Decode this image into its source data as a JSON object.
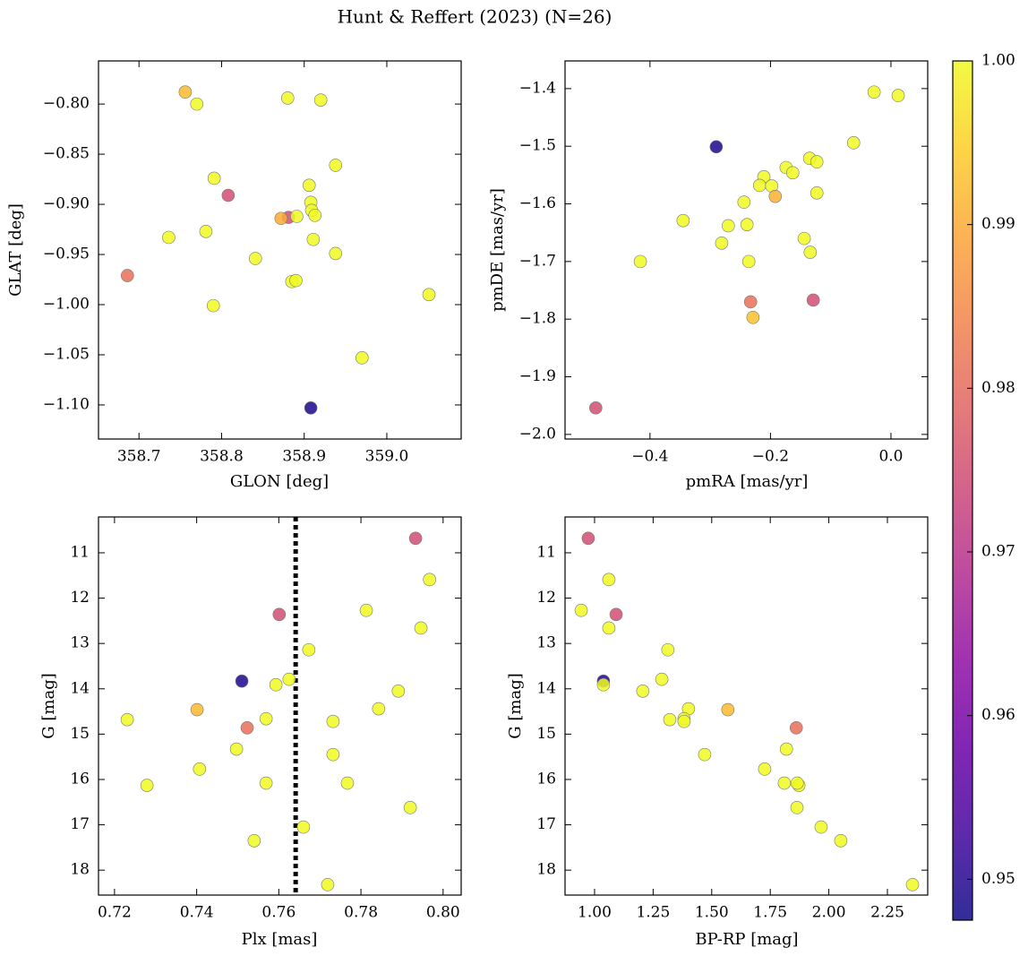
{
  "title": "Hunt & Reffert (2023) (N=26)",
  "colorbar": {
    "cmap": "plasma",
    "clim": [
      0.9475,
      1.0
    ],
    "ticks": [
      0.95,
      0.96,
      0.97,
      0.98,
      0.99,
      {
        "value": 1.0,
        "label": "1.00"
      }
    ]
  },
  "chart_data": [
    {
      "type": "scatter",
      "xlabel": "GLON [deg]",
      "ylabel": "GLAT [deg]",
      "xlim": [
        358.651,
        359.09
      ],
      "ylim": [
        -1.134,
        -0.757
      ],
      "xticks": [
        358.7,
        358.8,
        358.9,
        {
          "value": 359.0,
          "label": "359.0"
        }
      ],
      "yticks": [
        {
          "value": -1.1,
          "label": "−1.10"
        },
        {
          "value": -1.05,
          "label": "−1.05"
        },
        {
          "value": -1.0,
          "label": "−1.00"
        },
        {
          "value": -0.95,
          "label": "−0.95"
        },
        {
          "value": -0.9,
          "label": "−0.90"
        },
        {
          "value": -0.85,
          "label": "−0.85"
        },
        {
          "value": -0.8,
          "label": "−0.80"
        }
      ],
      "x": [
        358.756,
        358.77,
        358.88,
        358.92,
        358.938,
        358.791,
        358.808,
        358.906,
        358.908,
        358.909,
        358.913,
        358.881,
        358.872,
        358.891,
        358.736,
        358.781,
        358.911,
        358.938,
        358.841,
        358.686,
        358.885,
        358.89,
        358.79,
        359.051,
        358.97,
        358.908
      ],
      "y": [
        -0.788,
        -0.8,
        -0.794,
        -0.796,
        -0.861,
        -0.874,
        -0.891,
        -0.881,
        -0.898,
        -0.906,
        -0.911,
        -0.913,
        -0.914,
        -0.912,
        -0.933,
        -0.927,
        -0.935,
        -0.949,
        -0.954,
        -0.971,
        -0.977,
        -0.976,
        -1.001,
        -0.99,
        -1.053,
        -1.103
      ],
      "c": [
        0.992,
        1,
        1,
        1,
        1,
        1,
        0.975,
        1,
        1,
        1,
        1,
        0.975,
        0.99,
        1,
        1,
        1,
        1,
        1,
        1,
        0.981,
        1,
        1,
        1,
        1,
        1,
        0.949
      ]
    },
    {
      "type": "scatter",
      "xlabel": "pmRA [mas/yr]",
      "ylabel": "pmDE [mas/yr]",
      "xlim": [
        -0.541,
        0.061
      ],
      "ylim": [
        -2.008,
        -1.352
      ],
      "xticks": [
        {
          "value": -0.4,
          "label": "−0.4"
        },
        {
          "value": -0.2,
          "label": "−0.2"
        },
        {
          "value": 0.0,
          "label": "0.0"
        }
      ],
      "yticks": [
        {
          "value": -2.0,
          "label": "−2.0"
        },
        {
          "value": -1.9,
          "label": "−1.9"
        },
        {
          "value": -1.8,
          "label": "−1.8"
        },
        {
          "value": -1.7,
          "label": "−1.7"
        },
        {
          "value": -1.6,
          "label": "−1.6"
        },
        {
          "value": -1.5,
          "label": "−1.5"
        },
        {
          "value": -1.4,
          "label": "−1.4"
        }
      ],
      "x": [
        -0.028,
        0.012,
        -0.062,
        -0.29,
        -0.135,
        -0.123,
        -0.174,
        -0.163,
        -0.211,
        -0.218,
        -0.198,
        -0.123,
        -0.192,
        -0.244,
        -0.345,
        -0.27,
        -0.239,
        -0.144,
        -0.281,
        -0.134,
        -0.416,
        -0.236,
        -0.233,
        -0.129,
        -0.229,
        -0.49
      ],
      "y": [
        -1.406,
        -1.412,
        -1.494,
        -1.501,
        -1.521,
        -1.527,
        -1.537,
        -1.546,
        -1.553,
        -1.568,
        -1.569,
        -1.581,
        -1.587,
        -1.597,
        -1.629,
        -1.638,
        -1.636,
        -1.66,
        -1.668,
        -1.684,
        -1.7,
        -1.7,
        -1.77,
        -1.767,
        -1.797,
        -1.954
      ],
      "c": [
        1,
        1,
        1,
        0.949,
        1,
        1,
        1,
        1,
        1,
        1,
        1,
        1,
        0.991,
        1,
        1,
        1,
        1,
        1,
        1,
        1,
        1,
        1,
        0.981,
        0.975,
        0.993,
        0.975
      ]
    },
    {
      "type": "scatter",
      "xlabel": "Plx [mas]",
      "ylabel": "G [mag]",
      "xlim": [
        0.7161,
        0.8044
      ],
      "ylim": [
        18.55,
        10.21
      ],
      "xticks": [
        0.72,
        0.74,
        0.76,
        0.78,
        {
          "value": 0.8,
          "label": "0.80"
        }
      ],
      "yticks": [
        11,
        12,
        13,
        14,
        15,
        16,
        17,
        18
      ],
      "vline": {
        "x": 0.7641,
        "color": "#000000"
      },
      "x": [
        0.7933,
        0.7813,
        0.7967,
        0.7601,
        0.7946,
        0.7673,
        0.751,
        0.7625,
        0.7593,
        0.7891,
        0.7401,
        0.7843,
        0.7231,
        0.7569,
        0.7732,
        0.7523,
        0.7497,
        0.7732,
        0.7407,
        0.7279,
        0.7569,
        0.7767,
        0.792,
        0.766,
        0.754,
        0.7719
      ],
      "y": [
        10.68,
        12.27,
        11.59,
        12.36,
        12.66,
        13.14,
        13.83,
        13.79,
        13.91,
        14.05,
        14.46,
        14.44,
        14.68,
        14.66,
        14.72,
        14.86,
        15.33,
        15.45,
        15.77,
        16.13,
        16.08,
        16.08,
        16.62,
        17.05,
        17.35,
        18.32
      ],
      "c": [
        0.975,
        1,
        1,
        0.975,
        1,
        1,
        0.949,
        1,
        1,
        1,
        0.992,
        1,
        1,
        1,
        1,
        0.981,
        1,
        1,
        1,
        1,
        1,
        1,
        1,
        1,
        1,
        1
      ]
    },
    {
      "type": "scatter",
      "xlabel": "BP-RP [mag]",
      "ylabel": "G [mag]",
      "xlim": [
        0.874,
        2.422
      ],
      "ylim": [
        18.55,
        10.21
      ],
      "xticks": [
        {
          "value": 1.0,
          "label": "1.00"
        },
        1.25,
        {
          "value": 1.5,
          "label": "1.50"
        },
        1.75,
        {
          "value": 2.0,
          "label": "2.00"
        },
        2.25
      ],
      "yticks": [
        11,
        12,
        13,
        14,
        15,
        16,
        17,
        18
      ],
      "x": [
        0.973,
        0.943,
        1.061,
        1.092,
        1.061,
        1.313,
        1.038,
        1.287,
        1.038,
        1.206,
        1.569,
        1.401,
        1.321,
        1.382,
        1.382,
        1.861,
        1.819,
        1.47,
        1.726,
        1.872,
        1.81,
        1.865,
        1.864,
        1.967,
        2.051,
        2.357
      ],
      "y": [
        10.68,
        12.27,
        11.59,
        12.36,
        12.66,
        13.14,
        13.83,
        13.79,
        13.91,
        14.05,
        14.46,
        14.44,
        14.68,
        14.66,
        14.72,
        14.86,
        15.33,
        15.45,
        15.77,
        16.13,
        16.08,
        16.08,
        16.62,
        17.05,
        17.35,
        18.32
      ],
      "c": [
        0.975,
        1,
        1,
        0.975,
        1,
        1,
        0.949,
        1,
        1,
        1,
        0.992,
        1,
        1,
        1,
        1,
        0.981,
        1,
        1,
        1,
        1,
        1,
        1,
        1,
        1,
        1,
        1
      ]
    }
  ]
}
